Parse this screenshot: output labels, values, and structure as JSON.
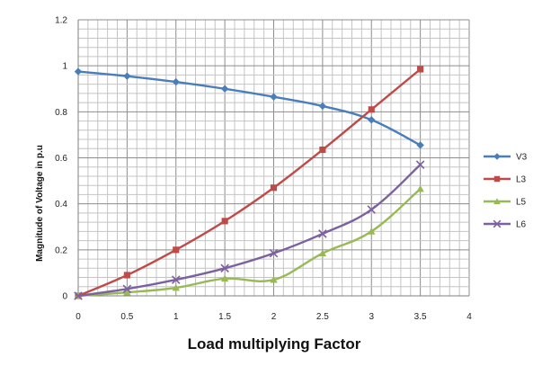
{
  "chart_data": {
    "type": "line",
    "title": "",
    "xlabel": "Load multiplying Factor",
    "ylabel": "Magnitude of Voltage in p.u",
    "xlim": [
      0,
      4
    ],
    "ylim": [
      0,
      1.2
    ],
    "x_ticks": [
      "0",
      "0.5",
      "1",
      "1.5",
      "2",
      "2.5",
      "3",
      "3.5",
      "4"
    ],
    "y_ticks": [
      "0",
      "0.2",
      "0.4",
      "0.6",
      "0.8",
      "1",
      "1.2"
    ],
    "grid": true,
    "legend_position": "right",
    "x": [
      0,
      0.5,
      1,
      1.5,
      2,
      2.5,
      3,
      3.5
    ],
    "series": [
      {
        "name": "V3",
        "color": "#4a7ebb",
        "marker": "diamond",
        "values": [
          0.975,
          0.955,
          0.93,
          0.9,
          0.865,
          0.825,
          0.765,
          0.655
        ]
      },
      {
        "name": "L3",
        "color": "#be4b48",
        "marker": "square",
        "values": [
          0,
          0.09,
          0.2,
          0.325,
          0.47,
          0.635,
          0.81,
          0.985
        ]
      },
      {
        "name": "L5",
        "color": "#98b954",
        "marker": "triangle",
        "values": [
          0,
          0.015,
          0.035,
          0.075,
          0.07,
          0.185,
          0.28,
          0.465
        ]
      },
      {
        "name": "L6",
        "color": "#7d60a0",
        "marker": "x",
        "values": [
          0,
          0.03,
          0.07,
          0.12,
          0.185,
          0.27,
          0.375,
          0.57
        ]
      }
    ]
  }
}
